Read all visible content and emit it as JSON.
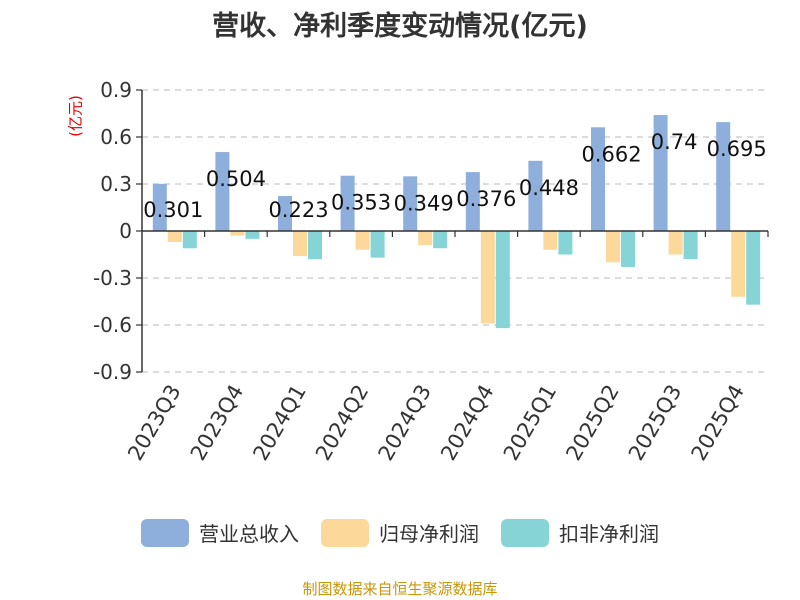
{
  "chart_data": {
    "type": "bar",
    "title": "营收、净利季度变动情况(亿元)",
    "y_unit": "(亿元)",
    "categories": [
      "2023Q3",
      "2023Q4",
      "2024Q1",
      "2024Q2",
      "2024Q3",
      "2024Q4",
      "2025Q1",
      "2025Q2",
      "2025Q3",
      "2025Q4"
    ],
    "series": [
      {
        "name": "营业总收入",
        "color": "#8eafdb",
        "values": [
          0.301,
          0.504,
          0.223,
          0.353,
          0.349,
          0.376,
          0.448,
          0.662,
          0.74,
          0.695
        ],
        "labels": [
          "0.301",
          "0.504",
          "0.223",
          "0.353",
          "0.349",
          "0.376",
          "0.448",
          "0.662",
          "0.74",
          "0.695"
        ]
      },
      {
        "name": "归母净利润",
        "color": "#fdd89b",
        "values": [
          -0.07,
          -0.03,
          -0.16,
          -0.12,
          -0.09,
          -0.59,
          -0.12,
          -0.2,
          -0.15,
          -0.42
        ]
      },
      {
        "name": "扣非净利润",
        "color": "#86d4d6",
        "values": [
          -0.11,
          -0.05,
          -0.18,
          -0.17,
          -0.11,
          -0.62,
          -0.15,
          -0.23,
          -0.18,
          -0.47
        ]
      }
    ],
    "ylim": [
      -0.9,
      0.9
    ],
    "yticks": [
      "0.9",
      "0.6",
      "0.3",
      "0",
      "-0.3",
      "-0.6",
      "-0.9"
    ],
    "ytick_values": [
      0.9,
      0.6,
      0.3,
      0,
      -0.3,
      -0.6,
      -0.9
    ],
    "grid": true,
    "legend_position": "bottom"
  },
  "source_text": "制图数据来自恒生聚源数据库"
}
